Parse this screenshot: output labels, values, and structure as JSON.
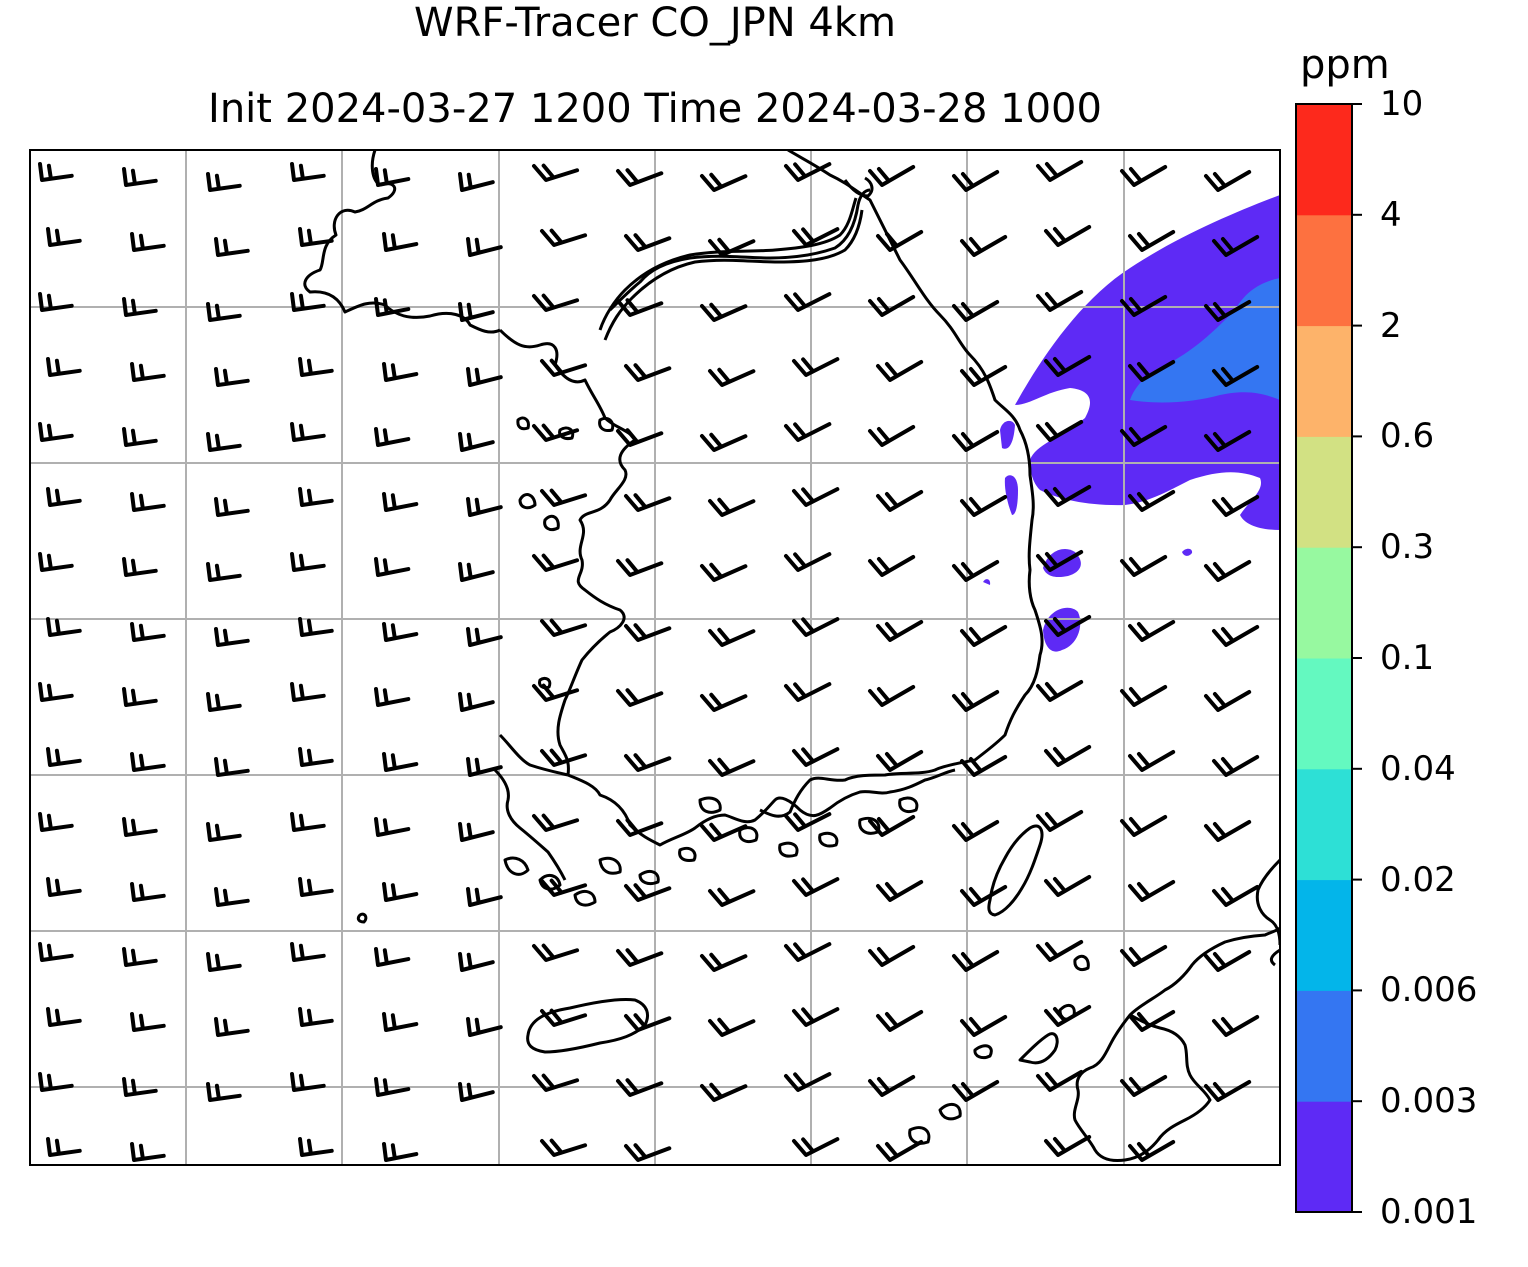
{
  "title": {
    "line1": "WRF-Tracer CO_JPN 4km",
    "line2": "Init 2024-03-27 1200 Time 2024-03-28 1000"
  },
  "colorbar": {
    "unit": "ppm",
    "levels": [
      "0.001",
      "0.003",
      "0.006",
      "0.02",
      "0.04",
      "0.1",
      "0.3",
      "0.6",
      "2",
      "4",
      "10"
    ],
    "colors": [
      "#5e2af5",
      "#3476f2",
      "#03b5ea",
      "#2de0d6",
      "#64f9c0",
      "#97f9a0",
      "#d2e183",
      "#fdb36a",
      "#fd7140",
      "#fd291c"
    ]
  },
  "colors": {
    "conc_low": "#5e2af5",
    "conc_mid": "#3476f2",
    "coastline": "#000000",
    "gridline": "#b0b0b0"
  }
}
